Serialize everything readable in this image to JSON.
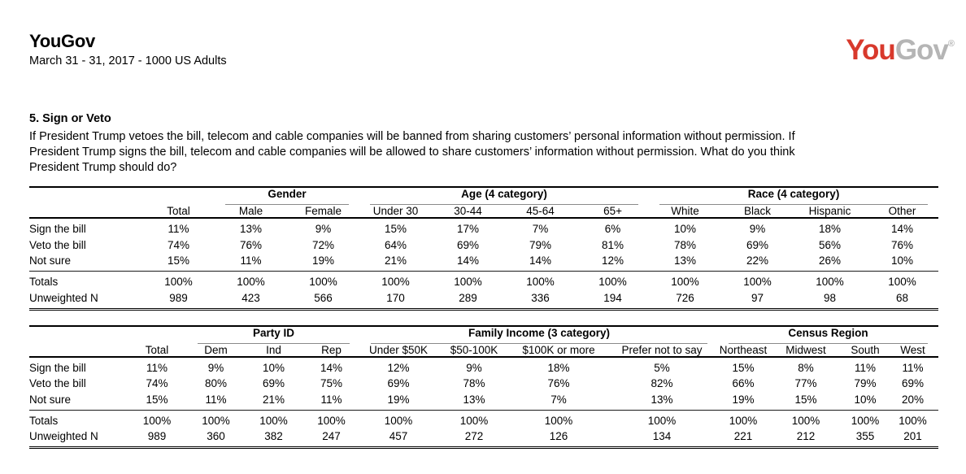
{
  "header": {
    "title": "YouGov",
    "subtitle": "March 31 - 31, 2017 - 1000 US Adults"
  },
  "logo": {
    "you": "You",
    "gov": "Gov",
    "mark": "®",
    "you_color": "#d8392c",
    "gov_color": "#b5b5b5"
  },
  "question": {
    "heading": "5. Sign or Veto",
    "body": "If President Trump vetoes the bill, telecom and cable companies will be banned from sharing customers’ personal information without permission. If President Trump signs the bill, telecom and cable companies will be allowed to share customers’ information without permission. What do you think President Trump should do?"
  },
  "tables": [
    {
      "name": "demographics",
      "group_headers": [
        {
          "label": "",
          "span": 2,
          "underline": false
        },
        {
          "label": "Gender",
          "span": 2,
          "underline": true
        },
        {
          "label": "Age (4 category)",
          "span": 4,
          "underline": true
        },
        {
          "label": "Race (4 category)",
          "span": 4,
          "underline": true
        }
      ],
      "column_headers": [
        "",
        "Total",
        "Male",
        "Female",
        "Under 30",
        "30-44",
        "45-64",
        "65+",
        "White",
        "Black",
        "Hispanic",
        "Other"
      ],
      "data_rows": [
        {
          "label": "Sign the bill",
          "values": [
            "11%",
            "13%",
            "9%",
            "15%",
            "17%",
            "7%",
            "6%",
            "10%",
            "9%",
            "18%",
            "14%"
          ]
        },
        {
          "label": "Veto the bill",
          "values": [
            "74%",
            "76%",
            "72%",
            "64%",
            "69%",
            "79%",
            "81%",
            "78%",
            "69%",
            "56%",
            "76%"
          ]
        },
        {
          "label": "Not sure",
          "values": [
            "15%",
            "11%",
            "19%",
            "21%",
            "14%",
            "14%",
            "12%",
            "13%",
            "22%",
            "26%",
            "10%"
          ]
        }
      ],
      "summary_rows": [
        {
          "label": "Totals",
          "values": [
            "100%",
            "100%",
            "100%",
            "100%",
            "100%",
            "100%",
            "100%",
            "100%",
            "100%",
            "100%",
            "100%"
          ]
        },
        {
          "label": "Unweighted N",
          "values": [
            "989",
            "423",
            "566",
            "170",
            "289",
            "336",
            "194",
            "726",
            "97",
            "98",
            "68"
          ]
        }
      ]
    },
    {
      "name": "politics-income-region",
      "group_headers": [
        {
          "label": "",
          "span": 2,
          "underline": false
        },
        {
          "label": "Party ID",
          "span": 3,
          "underline": true
        },
        {
          "label": "Family Income (3 category)",
          "span": 4,
          "underline": true
        },
        {
          "label": "Census Region",
          "span": 4,
          "underline": true
        }
      ],
      "column_headers": [
        "",
        "Total",
        "Dem",
        "Ind",
        "Rep",
        "Under $50K",
        "$50-100K",
        "$100K or more",
        "Prefer not to say",
        "Northeast",
        "Midwest",
        "South",
        "West"
      ],
      "data_rows": [
        {
          "label": "Sign the bill",
          "values": [
            "11%",
            "9%",
            "10%",
            "14%",
            "12%",
            "9%",
            "18%",
            "5%",
            "15%",
            "8%",
            "11%",
            "11%"
          ]
        },
        {
          "label": "Veto the bill",
          "values": [
            "74%",
            "80%",
            "69%",
            "75%",
            "69%",
            "78%",
            "76%",
            "82%",
            "66%",
            "77%",
            "79%",
            "69%"
          ]
        },
        {
          "label": "Not sure",
          "values": [
            "15%",
            "11%",
            "21%",
            "11%",
            "19%",
            "13%",
            "7%",
            "13%",
            "19%",
            "15%",
            "10%",
            "20%"
          ]
        }
      ],
      "summary_rows": [
        {
          "label": "Totals",
          "values": [
            "100%",
            "100%",
            "100%",
            "100%",
            "100%",
            "100%",
            "100%",
            "100%",
            "100%",
            "100%",
            "100%",
            "100%"
          ]
        },
        {
          "label": "Unweighted N",
          "values": [
            "989",
            "360",
            "382",
            "247",
            "457",
            "272",
            "126",
            "134",
            "221",
            "212",
            "355",
            "201"
          ]
        }
      ]
    }
  ]
}
